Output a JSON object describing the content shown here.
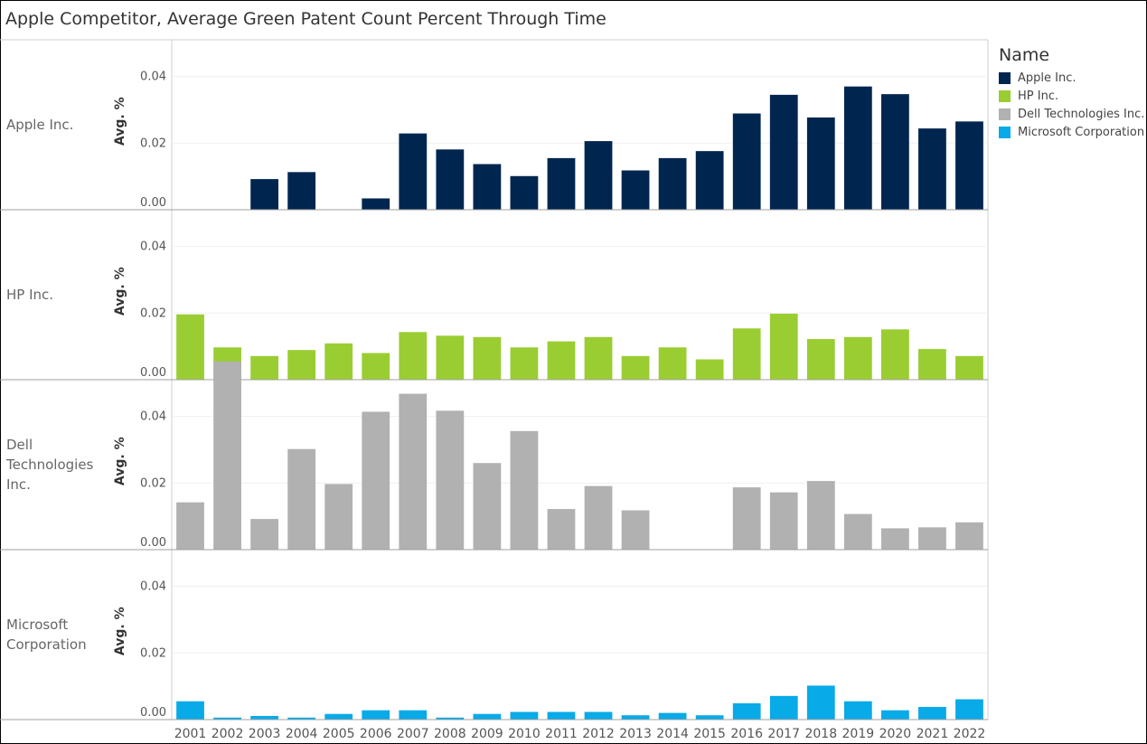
{
  "title": "Apple Competitor, Average Green Patent Count Percent Through Time",
  "legend": {
    "title": "Name",
    "items": [
      {
        "label": "Apple Inc.",
        "color": "#00264f"
      },
      {
        "label": "HP Inc.",
        "color": "#9acd32"
      },
      {
        "label": "Dell Technologies Inc.",
        "color": "#b1b1b1"
      },
      {
        "label": "Microsoft Corporation",
        "color": "#09aae8"
      }
    ]
  },
  "chart_data": {
    "type": "bar",
    "title": "Apple Competitor, Average Green Patent Count Percent Through Time",
    "xlabel": "",
    "ylabel": "Avg. %",
    "ylim": [
      0,
      0.05
    ],
    "yticks": [
      "0.00",
      "0.02",
      "0.04"
    ],
    "grid": true,
    "legend_position": "right",
    "categories": [
      "2001",
      "2002",
      "2003",
      "2004",
      "2005",
      "2006",
      "2007",
      "2008",
      "2009",
      "2010",
      "2011",
      "2012",
      "2013",
      "2014",
      "2015",
      "2016",
      "2017",
      "2018",
      "2019",
      "2020",
      "2021",
      "2022"
    ],
    "series": [
      {
        "name": "Apple Inc.",
        "row_label": [
          "Apple Inc."
        ],
        "color": "#00264f",
        "values": [
          0,
          0,
          0.0092,
          0.0113,
          0,
          0.0034,
          0.0229,
          0.0181,
          0.0137,
          0.0101,
          0.0155,
          0.0206,
          0.0118,
          0.0155,
          0.0176,
          0.0289,
          0.0345,
          0.0277,
          0.037,
          0.0347,
          0.0244,
          0.0265
        ]
      },
      {
        "name": "HP Inc.",
        "row_label": [
          "HP Inc."
        ],
        "color": "#9acd32",
        "values": [
          0.0196,
          0.0097,
          0.0071,
          0.0089,
          0.0109,
          0.008,
          0.0143,
          0.0132,
          0.0128,
          0.0097,
          0.0115,
          0.0128,
          0.0071,
          0.0097,
          0.0061,
          0.0154,
          0.0198,
          0.0122,
          0.0128,
          0.0151,
          0.0092,
          0.0071
        ]
      },
      {
        "name": "Dell Technologies Inc.",
        "row_label": [
          "Dell",
          "Technologies",
          "Inc."
        ],
        "color": "#b1b1b1",
        "values": [
          0.0142,
          0.0565,
          0.0092,
          0.0302,
          0.0197,
          0.0414,
          0.0468,
          0.0417,
          0.026,
          0.0356,
          0.0122,
          0.0191,
          0.0118,
          0,
          0,
          0.0187,
          0.0172,
          0.0206,
          0.0107,
          0.0064,
          0.0067,
          0.0082
        ]
      },
      {
        "name": "Microsoft Corporation",
        "row_label": [
          "Microsoft",
          "Corporation"
        ],
        "color": "#09aae8",
        "values": [
          0.0055,
          0.0006,
          0.0011,
          0.0006,
          0.0017,
          0.0028,
          0.0028,
          0.0006,
          0.0017,
          0.0023,
          0.0023,
          0.0023,
          0.0013,
          0.002,
          0.0013,
          0.0049,
          0.0071,
          0.0102,
          0.0055,
          0.0028,
          0.0038,
          0.0061
        ]
      }
    ]
  }
}
